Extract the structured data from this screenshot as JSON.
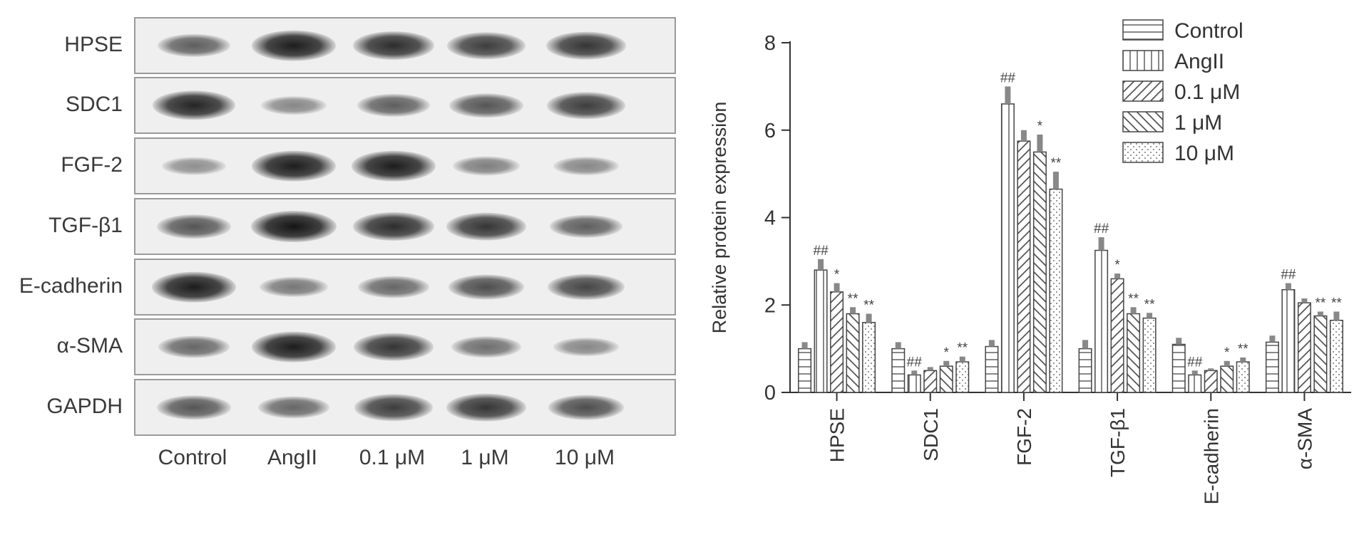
{
  "blot": {
    "rows": [
      {
        "label": "HPSE",
        "intensity": [
          0.55,
          0.95,
          0.85,
          0.75,
          0.8
        ]
      },
      {
        "label": "SDC1",
        "intensity": [
          0.9,
          0.3,
          0.55,
          0.6,
          0.75
        ]
      },
      {
        "label": "FGF-2",
        "intensity": [
          0.25,
          0.95,
          0.95,
          0.35,
          0.3
        ]
      },
      {
        "label": "TGF-β1",
        "intensity": [
          0.6,
          1.0,
          0.85,
          0.8,
          0.55
        ]
      },
      {
        "label": "E-cadherin",
        "intensity": [
          0.95,
          0.4,
          0.5,
          0.65,
          0.7
        ]
      },
      {
        "label": "α-SMA",
        "intensity": [
          0.5,
          0.95,
          0.8,
          0.45,
          0.3
        ]
      },
      {
        "label": "GAPDH",
        "intensity": [
          0.6,
          0.5,
          0.75,
          0.8,
          0.65
        ]
      }
    ],
    "lanes": [
      "Control",
      "AngII",
      "0.1 μM",
      "1 μM",
      "10 μM"
    ],
    "band_color": "#1a1a1a"
  },
  "chart_data": {
    "type": "bar",
    "ylabel": "Relative protein expression",
    "xlabel": "",
    "ylim": [
      0,
      8
    ],
    "yticks": [
      0,
      2,
      4,
      6,
      8
    ],
    "categories": [
      "HPSE",
      "SDC1",
      "FGF-2",
      "TGF-β1",
      "E-cadherin",
      "α-SMA"
    ],
    "legend_position": "top-right",
    "series": [
      {
        "name": "Control",
        "pattern": "horizontal-lines",
        "values": [
          1.0,
          1.0,
          1.05,
          1.0,
          1.1,
          1.15
        ],
        "errors": [
          0.15,
          0.15,
          0.15,
          0.2,
          0.15,
          0.15
        ],
        "marks": [
          "",
          "",
          "",
          "",
          "",
          ""
        ]
      },
      {
        "name": "AngII",
        "pattern": "vertical-lines",
        "values": [
          2.8,
          0.4,
          6.6,
          3.25,
          0.4,
          2.35
        ],
        "errors": [
          0.25,
          0.1,
          0.4,
          0.3,
          0.1,
          0.15
        ],
        "marks": [
          "##",
          "##",
          "##",
          "##",
          "##",
          "##"
        ]
      },
      {
        "name": "0.1 μM",
        "pattern": "diagonal-lines",
        "values": [
          2.3,
          0.5,
          5.75,
          2.6,
          0.5,
          2.05
        ],
        "errors": [
          0.2,
          0.08,
          0.25,
          0.12,
          0.05,
          0.1
        ],
        "marks": [
          "*",
          "",
          "",
          "*",
          "",
          ""
        ]
      },
      {
        "name": "1 μM",
        "pattern": "back-diagonal-lines",
        "values": [
          1.8,
          0.6,
          5.5,
          1.8,
          0.6,
          1.75
        ],
        "errors": [
          0.15,
          0.12,
          0.4,
          0.15,
          0.12,
          0.1
        ],
        "marks": [
          "**",
          "*",
          "*",
          "**",
          "*",
          "**"
        ]
      },
      {
        "name": "10 μM",
        "pattern": "dots",
        "values": [
          1.6,
          0.7,
          4.65,
          1.7,
          0.7,
          1.65
        ],
        "errors": [
          0.2,
          0.12,
          0.4,
          0.12,
          0.1,
          0.2
        ],
        "marks": [
          "**",
          "**",
          "**",
          "**",
          "**",
          "**"
        ]
      }
    ]
  }
}
